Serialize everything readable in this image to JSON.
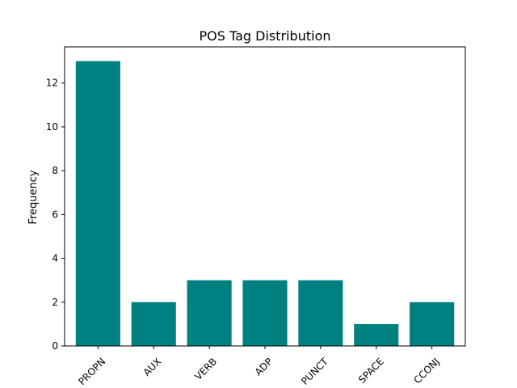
{
  "chart_data": {
    "type": "bar",
    "title": "POS Tag Distribution",
    "xlabel": "",
    "ylabel": "Frequency",
    "categories": [
      "PROPN",
      "AUX",
      "VERB",
      "ADP",
      "PUNCT",
      "SPACE",
      "CCONJ"
    ],
    "values": [
      13,
      2,
      3,
      3,
      3,
      1,
      2
    ],
    "ylim": [
      0,
      13.65
    ],
    "yticks": [
      0,
      2,
      4,
      6,
      8,
      10,
      12
    ],
    "grid": false,
    "bar_color": "#008080"
  }
}
